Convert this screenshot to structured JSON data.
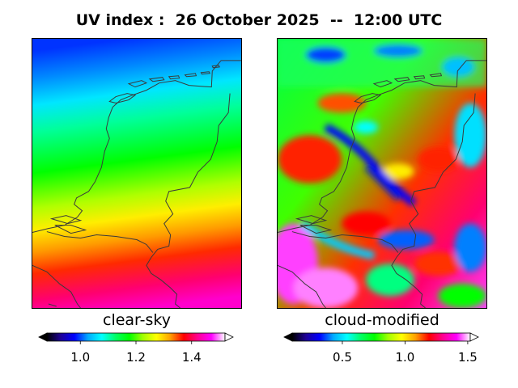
{
  "title": "UV index :  26 October 2025  --  12:00 UTC",
  "panels": [
    {
      "label": "clear-sky",
      "colorbar": {
        "min": 0.88,
        "max": 1.52,
        "extend": "both",
        "ticks": [
          "1.0",
          "1.2",
          "1.4"
        ],
        "tick_values": [
          1.0,
          1.2,
          1.4
        ]
      }
    },
    {
      "label": "cloud-modified",
      "colorbar": {
        "min": 0.1,
        "max": 1.52,
        "extend": "both",
        "ticks": [
          "0.5",
          "1.0",
          "1.5"
        ],
        "tick_values": [
          0.5,
          1.0,
          1.5
        ]
      }
    }
  ],
  "colormap": [
    "#000000",
    "#1e0096",
    "#0000ff",
    "#00aaff",
    "#00ffff",
    "#00ff66",
    "#00ff00",
    "#a0ff00",
    "#ffff00",
    "#ffa000",
    "#ff0000",
    "#ff0090",
    "#ff00ff",
    "#ffffff"
  ],
  "colors": {
    "coastline": "#3a3a3a",
    "frame": "#000000"
  }
}
